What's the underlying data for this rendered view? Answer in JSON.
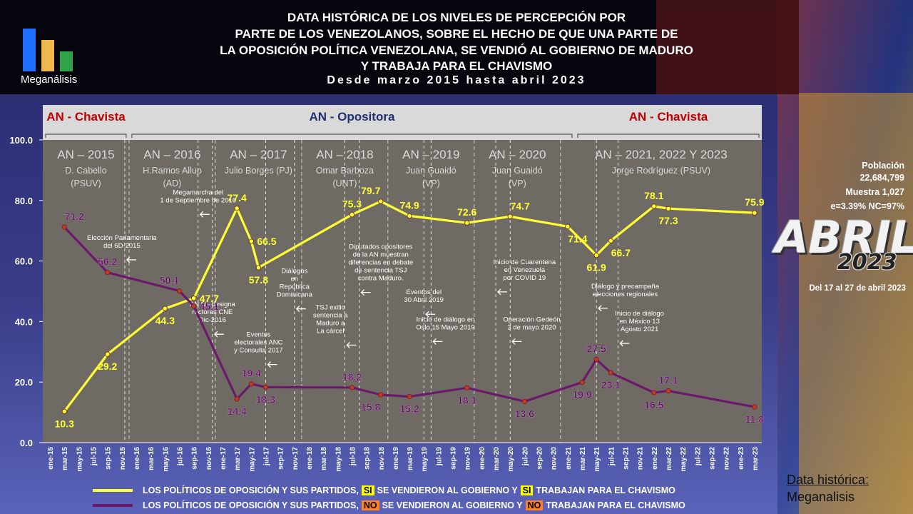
{
  "title_lines": [
    "DATA HISTÓRICA DE LOS NIVELES DE PERCEPCIÓN POR",
    "PARTE DE LOS VENEZOLANOS, SOBRE EL HECHO DE QUE UNA PARTE DE",
    "LA OPOSICIÓN POLÍTICA VENEZOLANA, SE VENDIÓ AL GOBIERNO DE MADURO",
    "Y TRABAJA PARA EL CHAVISMO"
  ],
  "subtitle": "Desde marzo 2015 hasta abril 2023",
  "logo": {
    "name": "Meganálisis",
    "bar_colors": [
      "#1f6fff",
      "#f0b84a",
      "#2fa34a"
    ]
  },
  "side_info": {
    "lines": [
      "Población",
      "22,684,799",
      "Muestra 1,027",
      "e=3.39%  NC=97%"
    ],
    "month_word": "ABRIL",
    "year_word": "2023",
    "dates": "Del 17 al 27 de abril 2023"
  },
  "legend": [
    {
      "prefix": "LOS POLÍTICOS DE OPOSICIÓN Y SUS PARTIDOS,",
      "tag1": "SI",
      "middle": "SE VENDIERON AL GOBIERNO Y",
      "tag2": "SI",
      "suffix": "TRABAJAN PARA EL CHAVISMO",
      "color": "#ffff33"
    },
    {
      "prefix": "LOS POLÍTICOS DE OPOSICIÓN Y SUS PARTIDOS,",
      "tag1": "NO",
      "middle": "SE VENDIERON AL GOBIERNO Y",
      "tag2": "NO",
      "suffix": "TRABAJAN PARA EL CHAVISMO",
      "color": "#6b1a6b"
    }
  ],
  "footer": {
    "label": "Data histórica:",
    "name": "Meganalisis"
  },
  "colors": {
    "si": "#ffff33",
    "no": "#6b1a6b",
    "plot_bg": "#6f6a63",
    "band_bg": "#d9d9d9",
    "chavista": "#c00000",
    "opositora": "#1f2f6f"
  },
  "chart_data": {
    "type": "line",
    "ylim": [
      0,
      100
    ],
    "y_ticks": [
      "0.0",
      "20.0",
      "40.0",
      "60.0",
      "80.0",
      "100.0"
    ],
    "grid": false,
    "legend_position": "bottom",
    "categories": [
      "ene-15",
      "mar-15",
      "may-15",
      "jul-15",
      "sep-15",
      "nov-15",
      "ene-16",
      "mar-16",
      "may-16",
      "jul-16",
      "sep-16",
      "nov-16",
      "ene-17",
      "mar-17",
      "may-17",
      "jul-17",
      "sep-17",
      "nov-17",
      "ene-18",
      "mar-18",
      "may-18",
      "jul-18",
      "sep-18",
      "nov-18",
      "ene-19",
      "mar-19",
      "may-19",
      "jul-19",
      "sep-19",
      "nov-19",
      "ene-20",
      "mar-20",
      "may-20",
      "jul-20",
      "sep-20",
      "nov-20",
      "ene-21",
      "mar-21",
      "may-21",
      "jul-21",
      "sep-21",
      "nov-21",
      "ene-22",
      "mar-22",
      "may-22",
      "jul-22",
      "sep-22",
      "nov-22",
      "ene-23",
      "mar-23"
    ],
    "series": [
      {
        "name": "LOS POLÍTICOS DE OPOSICIÓN Y SUS PARTIDOS, SI SE VENDIERON AL GOBIERNO Y SI TRABAJAN PARA EL CHAVISMO",
        "color": "#ffff33",
        "points": [
          [
            1,
            10.3
          ],
          [
            4,
            29.2
          ],
          [
            8,
            44.3
          ],
          [
            10,
            47.7
          ],
          [
            13,
            77.4
          ],
          [
            14,
            66.5
          ],
          [
            14.5,
            57.8
          ],
          [
            21,
            75.3
          ],
          [
            23,
            79.7
          ],
          [
            25,
            74.9
          ],
          [
            29,
            72.6
          ],
          [
            32,
            74.7
          ],
          [
            36,
            71.4
          ],
          [
            38,
            61.9
          ],
          [
            39,
            66.7
          ],
          [
            42,
            78.1
          ],
          [
            43,
            77.3
          ],
          [
            49,
            75.9
          ]
        ],
        "labels": [
          {
            "i": 0,
            "t": "10.3",
            "pos": "below"
          },
          {
            "i": 1,
            "t": "29.2",
            "pos": "below"
          },
          {
            "i": 2,
            "t": "44.3",
            "pos": "below"
          },
          {
            "i": 3,
            "t": "47.7",
            "pos": "right"
          },
          {
            "i": 4,
            "t": "77.4",
            "pos": "above"
          },
          {
            "i": 5,
            "t": "66.5",
            "pos": "right"
          },
          {
            "i": 6,
            "t": "57.8",
            "pos": "below"
          },
          {
            "i": 7,
            "t": "75.3",
            "pos": "above"
          },
          {
            "i": 8,
            "t": "79.7",
            "pos": "above-left"
          },
          {
            "i": 9,
            "t": "74.9",
            "pos": "above"
          },
          {
            "i": 10,
            "t": "72.6",
            "pos": "above"
          },
          {
            "i": 11,
            "t": "74.7",
            "pos": "above-right"
          },
          {
            "i": 12,
            "t": "71.4",
            "pos": "below-right"
          },
          {
            "i": 13,
            "t": "61.9",
            "pos": "below"
          },
          {
            "i": 14,
            "t": "66.7",
            "pos": "below-right"
          },
          {
            "i": 15,
            "t": "78.1",
            "pos": "above"
          },
          {
            "i": 16,
            "t": "77.3",
            "pos": "below"
          },
          {
            "i": 17,
            "t": "75.9",
            "pos": "above"
          }
        ]
      },
      {
        "name": "LOS POLÍTICOS DE OPOSICIÓN Y SUS PARTIDOS, NO SE VENDIERON AL GOBIERNO Y NO TRABAJAN PARA EL CHAVISMO",
        "color": "#6b1a6b",
        "points": [
          [
            1,
            71.2
          ],
          [
            4,
            56.2
          ],
          [
            9,
            50.1
          ],
          [
            10,
            45.1
          ],
          [
            13,
            14.4
          ],
          [
            14,
            19.4
          ],
          [
            15,
            18.3
          ],
          [
            21,
            18.2
          ],
          [
            23,
            15.8
          ],
          [
            25,
            15.2
          ],
          [
            29,
            18.1
          ],
          [
            33,
            13.6
          ],
          [
            37,
            19.9
          ],
          [
            38,
            27.5
          ],
          [
            39,
            23.1
          ],
          [
            42,
            16.5
          ],
          [
            43,
            17.1
          ],
          [
            49,
            11.8
          ]
        ],
        "labels": [
          {
            "i": 0,
            "t": "71.2",
            "pos": "above-right"
          },
          {
            "i": 1,
            "t": "56.2",
            "pos": "above"
          },
          {
            "i": 2,
            "t": "50.1",
            "pos": "above-left"
          },
          {
            "i": 3,
            "t": "45.1",
            "pos": "right"
          },
          {
            "i": 4,
            "t": "14.4",
            "pos": "below"
          },
          {
            "i": 5,
            "t": "19.4",
            "pos": "above"
          },
          {
            "i": 6,
            "t": "18.3",
            "pos": "below"
          },
          {
            "i": 7,
            "t": "18.2",
            "pos": "above"
          },
          {
            "i": 8,
            "t": "15.8",
            "pos": "below-left"
          },
          {
            "i": 9,
            "t": "15.2",
            "pos": "below"
          },
          {
            "i": 10,
            "t": "18.1",
            "pos": "below"
          },
          {
            "i": 11,
            "t": "13.6",
            "pos": "below"
          },
          {
            "i": 12,
            "t": "19.9",
            "pos": "below"
          },
          {
            "i": 13,
            "t": "27.5",
            "pos": "above"
          },
          {
            "i": 14,
            "t": "23.1",
            "pos": "below"
          },
          {
            "i": 15,
            "t": "16.5",
            "pos": "below"
          },
          {
            "i": 16,
            "t": "17.1",
            "pos": "above"
          },
          {
            "i": 17,
            "t": "11.8",
            "pos": "below"
          }
        ]
      }
    ],
    "bands": [
      {
        "label": "AN - Chavista",
        "from": -0.5,
        "to": 5.5,
        "color": "#c00000"
      },
      {
        "label": "AN - Opositora",
        "from": 5.5,
        "to": 36.5,
        "color": "#1f2f6f"
      },
      {
        "label": "AN - Chavista",
        "from": 36.5,
        "to": 49.5,
        "color": "#c00000"
      }
    ],
    "periods": [
      {
        "title": "AN – 2015",
        "lines": [
          "D. Cabello",
          "(PSUV)"
        ],
        "from": -0.5,
        "to": 5.5
      },
      {
        "title": "AN – 2016",
        "lines": [
          "H.Ramos Allup",
          "(AD)"
        ],
        "from": 5.5,
        "to": 11.5
      },
      {
        "title": "AN – 2017",
        "lines": [
          "Julio Borges (PJ)"
        ],
        "from": 11.5,
        "to": 17.5
      },
      {
        "title": "AN – 2018",
        "lines": [
          "Omar Barboza",
          "(UNT)"
        ],
        "from": 17.5,
        "to": 23.5
      },
      {
        "title": "AN – 2019",
        "lines": [
          "Juan Guaidó",
          "(VP)"
        ],
        "from": 23.5,
        "to": 29.5
      },
      {
        "title": "AN – 2020",
        "lines": [
          "Juan Guaidó",
          "(VP)"
        ],
        "from": 29.5,
        "to": 35.5
      },
      {
        "title": "AN – 2021, 2022 Y 2023",
        "lines": [
          "Jorge Rodríguez (PSUV)"
        ],
        "from": 35.5,
        "to": 49.5
      }
    ],
    "annotations": [
      {
        "lines": [
          "Elección Parlamentaria",
          "del 6D-2015"
        ],
        "at": 5,
        "y": 67,
        "arrow": 5.2
      },
      {
        "lines": [
          "Megamarcha del",
          "1 de Septiembre de 2016"
        ],
        "at": 10.3,
        "y": 82,
        "arrow": 10.3
      },
      {
        "lines": [
          "AN No designa",
          "rectores CNE",
          "Dic-2016"
        ],
        "at": 11.3,
        "y": 45,
        "arrow": 11.3
      },
      {
        "lines": [
          "Eventos",
          "electorales  ANC",
          "y Consulta 2017"
        ],
        "at": 14.5,
        "y": 35,
        "arrow": 15
      },
      {
        "lines": [
          "Diálogos",
          "en",
          "República",
          "Dominicana"
        ],
        "at": 17,
        "y": 56,
        "arrow": 17
      },
      {
        "lines": [
          "TSJ exilio",
          "sentencia a",
          "Maduro a",
          "La cárcel"
        ],
        "at": 19.5,
        "y": 44,
        "arrow": 20.5
      },
      {
        "lines": [
          "Diputados opositores",
          "de la AN muestran",
          "diferencias en debate",
          "de sentencia TSJ",
          "contra Maduro."
        ],
        "at": 23,
        "y": 64,
        "arrow": 21.5
      },
      {
        "lines": [
          "Eventos del",
          "30 Abril 2019"
        ],
        "at": 26,
        "y": 49,
        "arrow": 26
      },
      {
        "lines": [
          "Inicio de diálogo en",
          "Oslo 15 Mayo 2019"
        ],
        "at": 27.5,
        "y": 40,
        "arrow": 26.5
      },
      {
        "lines": [
          "Inicio de Cuarentena",
          "en Venezuela",
          "por COVID 19"
        ],
        "at": 33,
        "y": 59,
        "arrow": 31
      },
      {
        "lines": [
          "Operación Gedeón",
          "3 de mayo 2020"
        ],
        "at": 33.5,
        "y": 40,
        "arrow": 32
      },
      {
        "lines": [
          "Diálogo y precampaña",
          "elecciones regionales"
        ],
        "at": 40,
        "y": 51,
        "arrow": 38
      },
      {
        "lines": [
          "Inicio de diálogo",
          "en México 13",
          "Agosto 2021"
        ],
        "at": 41,
        "y": 42,
        "arrow": 39.5
      }
    ]
  }
}
